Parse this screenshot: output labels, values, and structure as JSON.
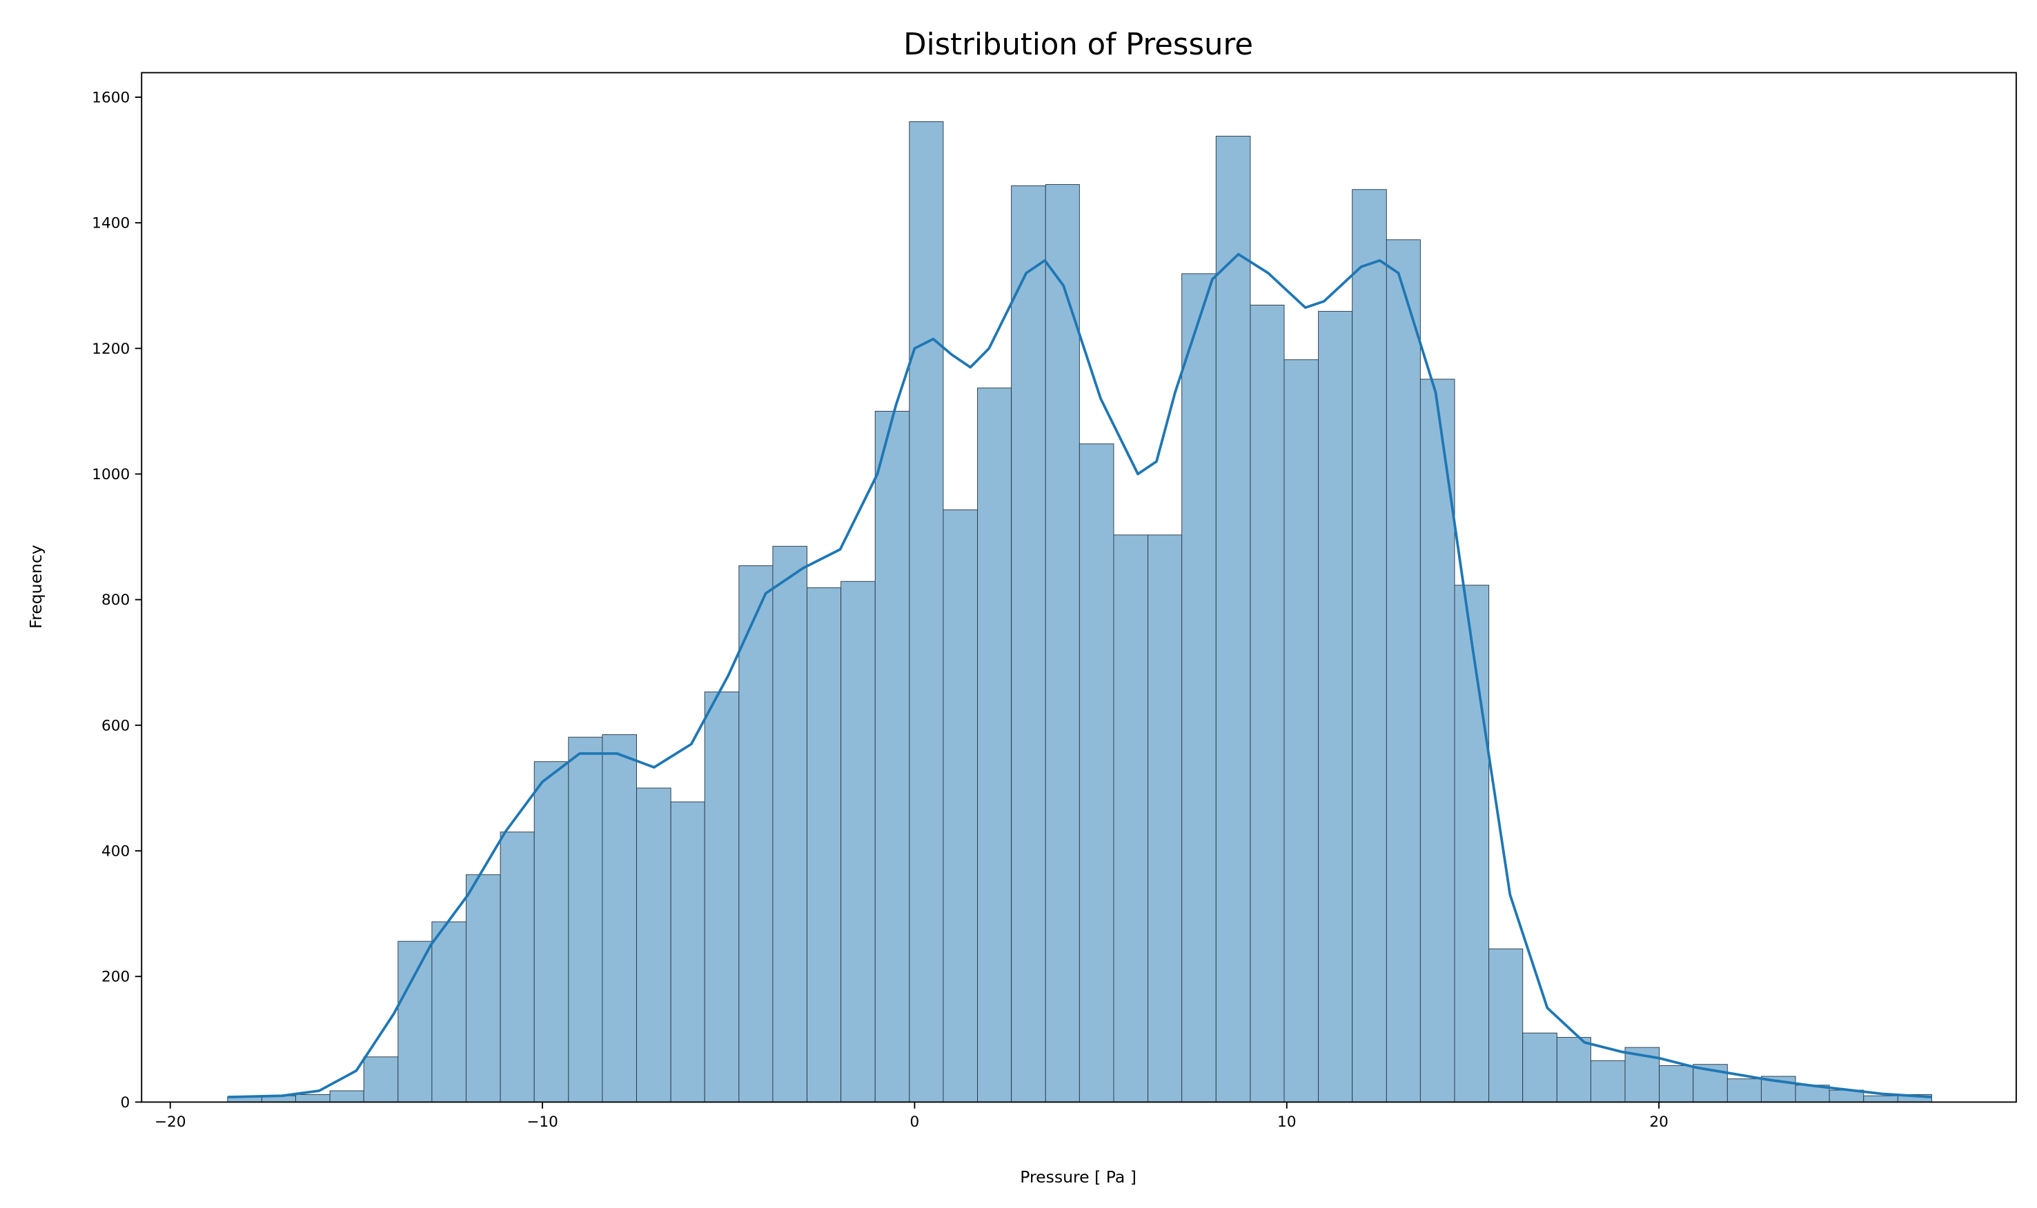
{
  "chart_data": {
    "type": "histogram",
    "title": "Distribution of Pressure",
    "xlabel": "Pressure [ Pa ]",
    "ylabel": "Frequency",
    "bins": [
      -18.46,
      -17.54,
      -16.63,
      -15.71,
      -14.8,
      -13.88,
      -12.97,
      -12.05,
      -11.13,
      -10.22,
      -9.3,
      -8.39,
      -7.47,
      -6.55,
      -5.64,
      -4.72,
      -3.81,
      -2.89,
      -1.98,
      -1.06,
      -0.14,
      0.77,
      1.69,
      2.6,
      3.52,
      4.43,
      5.35,
      6.27,
      7.18,
      8.1,
      9.02,
      9.93,
      10.85,
      11.76,
      12.68,
      13.59,
      14.51,
      15.43,
      16.34,
      17.26,
      18.17,
      19.09,
      20.01,
      20.92,
      21.84,
      22.75,
      23.67,
      24.58,
      25.5,
      26.42,
      27.33
    ],
    "values": [
      8,
      10,
      12,
      18,
      72,
      256,
      287,
      362,
      430,
      542,
      581,
      585,
      500,
      478,
      653,
      854,
      885,
      819,
      829,
      1100,
      1561,
      943,
      1137,
      1459,
      1461,
      1048,
      903,
      903,
      1319,
      1538,
      1269,
      1182,
      1259,
      1453,
      1373,
      1151,
      823,
      244,
      110,
      103,
      66,
      87,
      58,
      60,
      37,
      41,
      27,
      19,
      10,
      12
    ],
    "color": "#8fbbd9",
    "edgecolor": "#2b3a44",
    "kde": {
      "color": "#1f77b4",
      "x": [
        -18.46,
        -17,
        -16,
        -15,
        -14,
        -13,
        -12,
        -11,
        -10,
        -9,
        -8,
        -7,
        -6,
        -5,
        -4,
        -3,
        -2,
        -1,
        -0.5,
        0,
        0.5,
        1,
        1.5,
        2,
        3,
        3.5,
        4,
        5,
        6,
        6.5,
        7,
        8,
        8.7,
        9.5,
        10.5,
        11,
        12,
        12.5,
        13,
        14,
        15,
        16,
        17,
        18,
        19,
        20,
        21,
        22,
        23,
        24,
        25,
        26,
        27.33
      ],
      "values": [
        8,
        10,
        18,
        50,
        140,
        250,
        330,
        430,
        510,
        555,
        555,
        533,
        570,
        680,
        810,
        850,
        880,
        1000,
        1110,
        1200,
        1215,
        1190,
        1170,
        1200,
        1320,
        1340,
        1300,
        1120,
        1000,
        1020,
        1130,
        1310,
        1350,
        1320,
        1265,
        1275,
        1330,
        1340,
        1320,
        1130,
        720,
        330,
        150,
        95,
        80,
        70,
        55,
        45,
        35,
        27,
        20,
        13,
        8
      ]
    },
    "xlim": [
      -20.77,
      29.6
    ],
    "ylim": [
      0,
      1639
    ],
    "xticks": [
      {
        "value": -20,
        "label": "−20"
      },
      {
        "value": -10,
        "label": "−10"
      },
      0,
      10,
      20
    ],
    "yticks": [
      0,
      200,
      400,
      600,
      800,
      1000,
      1200,
      1400,
      1600
    ]
  }
}
